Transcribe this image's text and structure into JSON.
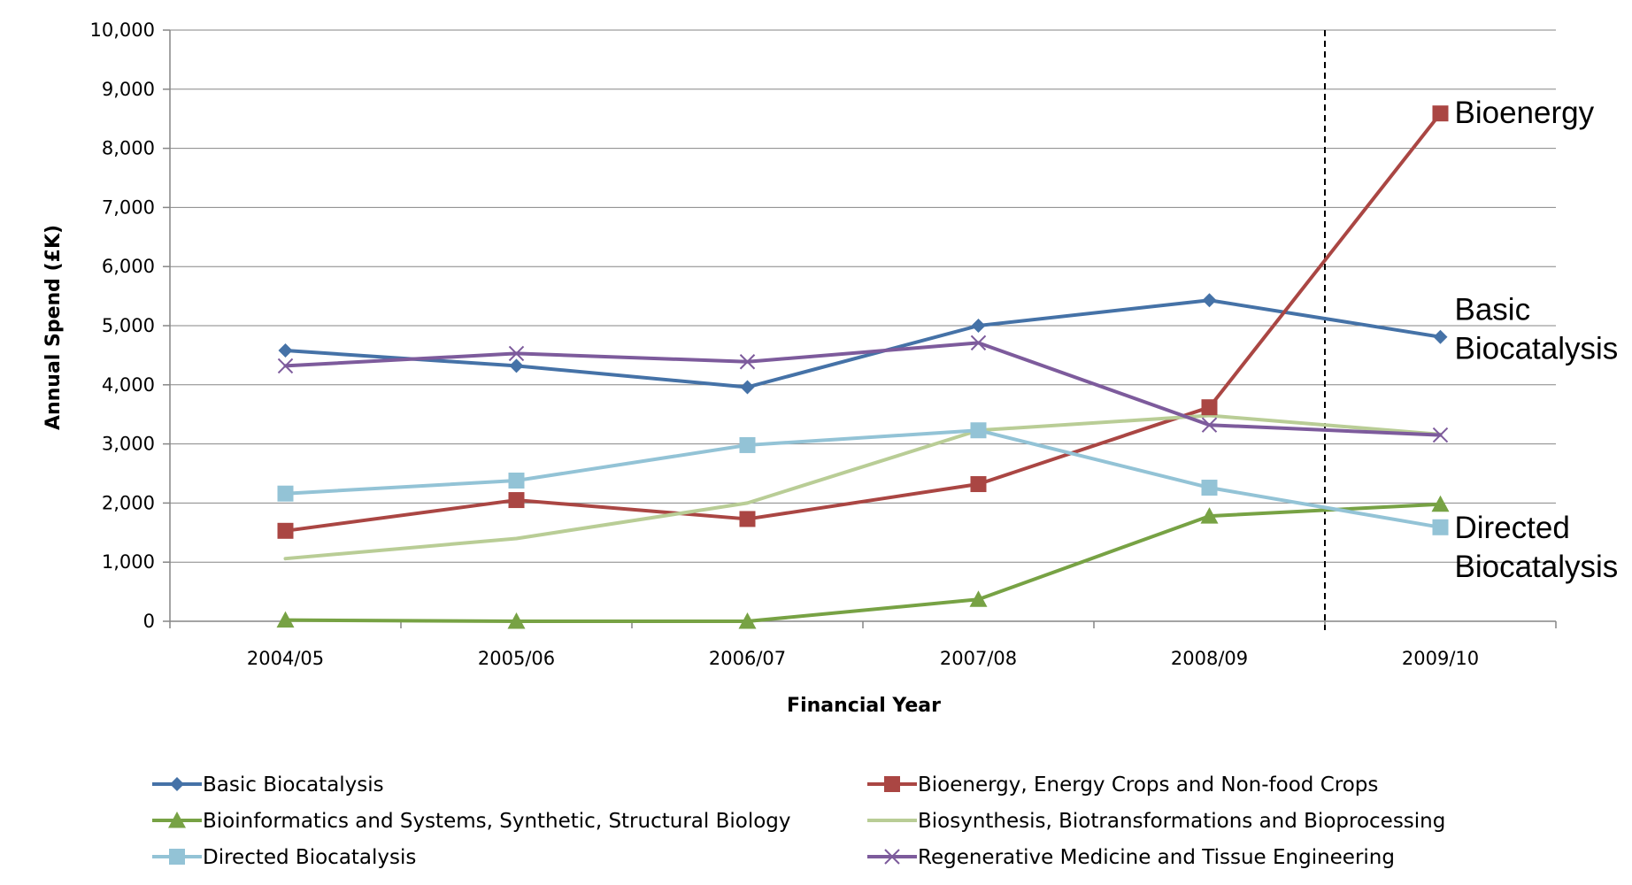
{
  "chart_data": {
    "type": "line",
    "title": "",
    "xlabel": "Financial Year",
    "ylabel": "Annual Spend (£K)",
    "ylim": [
      0,
      10000
    ],
    "y_ticks": [
      {
        "value": 0,
        "label": "0"
      },
      {
        "value": 1000,
        "label": "1,000"
      },
      {
        "value": 2000,
        "label": "2,000"
      },
      {
        "value": 3000,
        "label": "3,000"
      },
      {
        "value": 4000,
        "label": "4,000"
      },
      {
        "value": 5000,
        "label": "5,000"
      },
      {
        "value": 6000,
        "label": "6,000"
      },
      {
        "value": 7000,
        "label": "7,000"
      },
      {
        "value": 8000,
        "label": "8,000"
      },
      {
        "value": 9000,
        "label": "9,000"
      },
      {
        "value": 10000,
        "label": "10,000"
      }
    ],
    "categories": [
      "2004/05",
      "2005/06",
      "2006/07",
      "2007/08",
      "2008/09",
      "2009/10"
    ],
    "grid": "horizontal",
    "legend_position": "bottom",
    "reference_line": {
      "between": [
        "2008/09",
        "2009/10"
      ],
      "style": "dashed"
    },
    "series": [
      {
        "name": "Basic Biocatalysis",
        "color": "#4572A7",
        "marker": "diamond",
        "values": [
          4580,
          4320,
          3960,
          5000,
          5430,
          4810
        ]
      },
      {
        "name": "Bioenergy, Energy Crops and Non-food Crops",
        "color": "#AA4643",
        "marker": "square",
        "values": [
          1530,
          2050,
          1730,
          2320,
          3620,
          8590
        ]
      },
      {
        "name": "Bioinformatics and Systems, Synthetic, Structural Biology",
        "color": "#77A244",
        "marker": "triangle",
        "values": [
          20,
          0,
          0,
          370,
          1780,
          1980
        ]
      },
      {
        "name": "Biosynthesis, Biotransformations and Bioprocessing",
        "color": "#B9CD96",
        "marker": "none",
        "values": [
          1060,
          1400,
          2000,
          3230,
          3480,
          3160
        ]
      },
      {
        "name": "Directed Biocatalysis",
        "color": "#93C3D6",
        "marker": "square",
        "values": [
          2160,
          2380,
          2980,
          3230,
          2260,
          1590
        ]
      },
      {
        "name": "Regenerative Medicine and Tissue Engineering",
        "color": "#7D5B9C",
        "marker": "x",
        "values": [
          4320,
          4530,
          4390,
          4710,
          3320,
          3150
        ]
      }
    ],
    "annotations": [
      {
        "lines": [
          "Bioenergy"
        ],
        "near": "Bioenergy, Energy Crops and Non-food Crops"
      },
      {
        "lines": [
          "Basic",
          "Biocatalysis"
        ],
        "near": "Basic Biocatalysis"
      },
      {
        "lines": [
          "Directed",
          "Biocatalysis"
        ],
        "near": "Directed Biocatalysis"
      }
    ]
  }
}
